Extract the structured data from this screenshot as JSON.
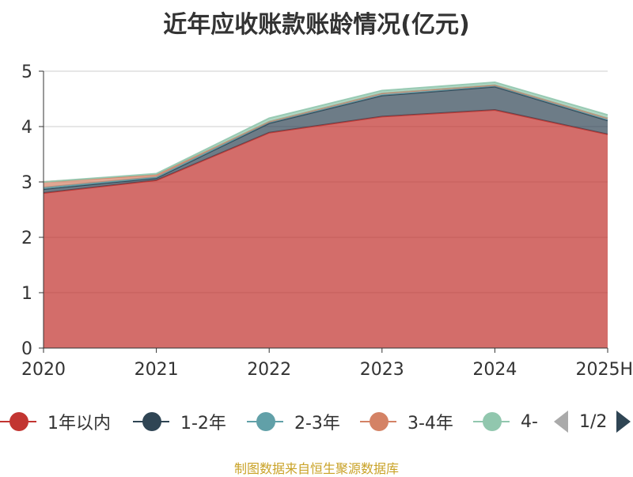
{
  "title": "近年应收账款账龄情况(亿元)",
  "source": "制图数据来自恒生聚源数据库",
  "legend_page": "1/2",
  "chart_data": {
    "type": "area",
    "stacked": true,
    "title": "近年应收账款账龄情况(亿元)",
    "x": [
      "2020",
      "2021",
      "2022",
      "2023",
      "2024",
      "2025H"
    ],
    "ylim": [
      0,
      5
    ],
    "yticks": [
      0,
      1,
      2,
      3,
      4,
      5
    ],
    "grid": true,
    "legend_position": "bottom",
    "series": [
      {
        "name": "1年以内",
        "color": "#c23531",
        "values": [
          2.8,
          3.03,
          3.89,
          4.18,
          4.3,
          3.86
        ]
      },
      {
        "name": "1-2年",
        "color": "#2f4554",
        "values": [
          0.07,
          0.04,
          0.17,
          0.38,
          0.42,
          0.25
        ]
      },
      {
        "name": "2-3年",
        "color": "#61a0a8",
        "values": [
          0.03,
          0.02,
          0.03,
          0.04,
          0.03,
          0.04
        ]
      },
      {
        "name": "3-4年",
        "color": "#d48265",
        "values": [
          0.1,
          0.04,
          0.0,
          0.0,
          0.0,
          0.0
        ]
      },
      {
        "name": "4-",
        "color": "#91c7ae",
        "values": [
          0.0,
          0.02,
          0.06,
          0.05,
          0.05,
          0.06
        ]
      }
    ]
  }
}
